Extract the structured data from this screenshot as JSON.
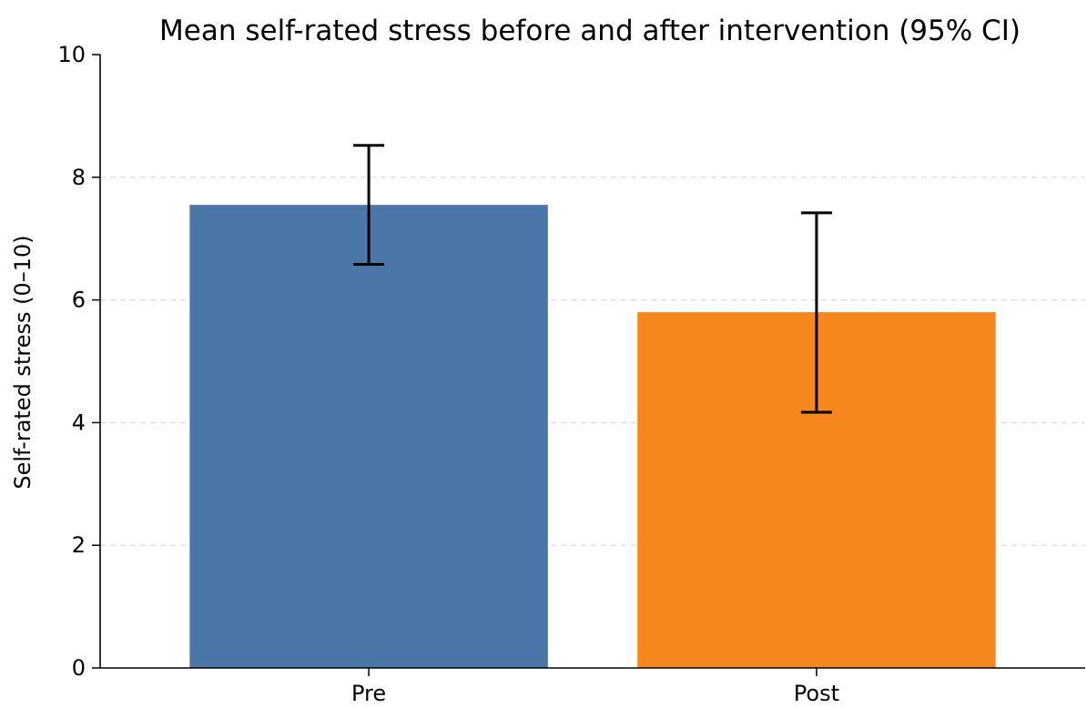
{
  "chart_data": {
    "type": "bar",
    "title": "Mean self-rated stress before and after intervention (95% CI)",
    "xlabel": "",
    "ylabel": "Self-rated stress (0–10)",
    "categories": [
      "Pre",
      "Post"
    ],
    "values": [
      7.55,
      5.8
    ],
    "error_bars": [
      {
        "lower": 6.58,
        "upper": 8.52
      },
      {
        "lower": 4.17,
        "upper": 7.42
      }
    ],
    "colors": [
      "#4a76a8",
      "#f5871c"
    ],
    "ylim": [
      0,
      10
    ],
    "yticks": [
      "0",
      "2",
      "4",
      "6",
      "8",
      "10"
    ],
    "grid": "horizontal dashed",
    "legend": "none"
  }
}
